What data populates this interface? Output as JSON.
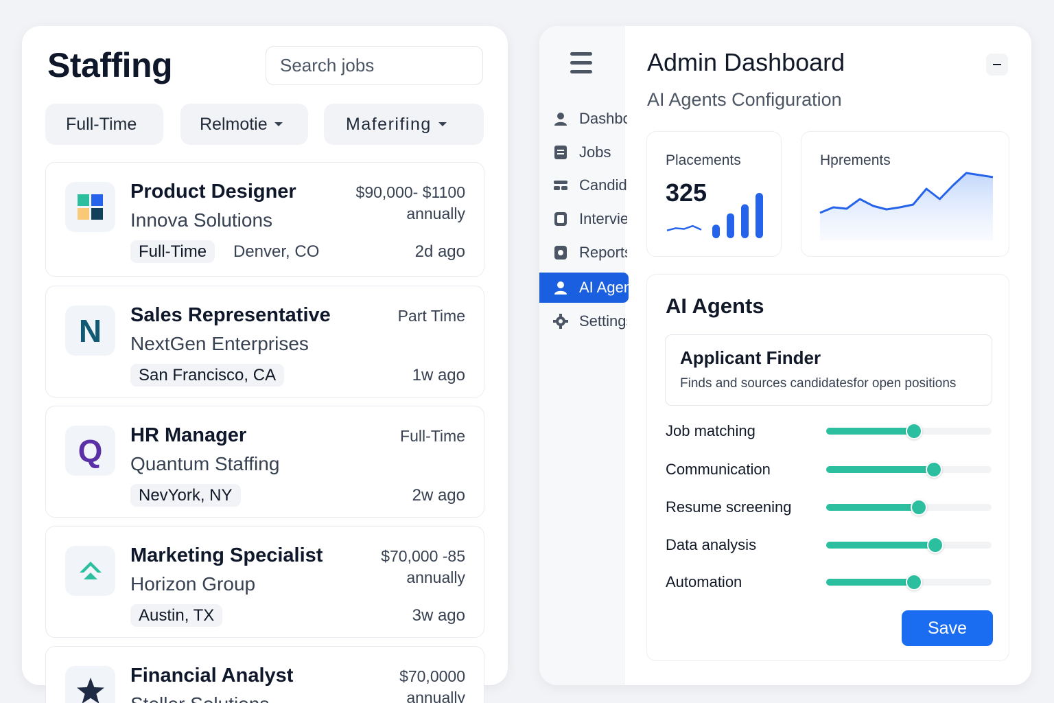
{
  "left": {
    "brand": "Staffing",
    "search_placeholder": "Search jobs",
    "filters": [
      "Full-Time",
      "Relmotie",
      "Maferifing"
    ],
    "jobs": [
      {
        "title": "Product Designer",
        "company": "Innova Solutions",
        "salary_line1": "$90,000- $1100",
        "salary_line2": "annually",
        "tag": "Full-Time",
        "location": "Denver, CO",
        "ago": "2d ago",
        "logo": "grid-logo-icon"
      },
      {
        "title": "Sales Representative",
        "company": "NextGen Enterprises",
        "salary_line1": "Part Time",
        "salary_line2": "",
        "tag": "",
        "location": "San Francisco, CA",
        "ago": "1w ago",
        "logo_letter": "N",
        "logo_color": "#125a73"
      },
      {
        "title": "HR Manager",
        "company": "Quantum Staffing",
        "salary_line1": "Full-Time",
        "salary_line2": "",
        "tag": "",
        "location": "NevYork, NY",
        "ago": "2w ago",
        "logo_letter": "Q",
        "logo_color": "#5b2fa6"
      },
      {
        "title": "Marketing Specialist",
        "company": "Horizon Group",
        "salary_line1": "$70,000 -85",
        "salary_line2": "annually",
        "tag": "",
        "location": "Austin, TX",
        "ago": "3w ago",
        "logo": "chevron-up-logo-icon",
        "logo_color": "#2bbfa0"
      },
      {
        "title": "Financial Analyst",
        "company": "Steller Solutions",
        "salary_line1": "$70,0000",
        "salary_line2": "annually",
        "tag": "",
        "location": "",
        "ago": "",
        "logo": "star-logo-icon",
        "logo_color": "#1f2a44"
      }
    ]
  },
  "right": {
    "title": "Admin Dashboard",
    "subtitle": "AI Agents Configuration",
    "sidebar": [
      {
        "label": "Dashboard",
        "icon": "user-icon"
      },
      {
        "label": "Jobs",
        "icon": "document-icon"
      },
      {
        "label": "Candidates",
        "icon": "people-icon"
      },
      {
        "label": "Interviews",
        "icon": "calendar-icon"
      },
      {
        "label": "Reports",
        "icon": "report-icon"
      },
      {
        "label": "AI Agents",
        "icon": "user-icon",
        "active": true
      },
      {
        "label": "Settings",
        "icon": "gear-icon"
      }
    ],
    "stats": [
      {
        "label": "Placements",
        "value": "325"
      },
      {
        "label": "Hprements",
        "value": ""
      }
    ],
    "placement_bars": [
      0.3,
      0.55,
      0.75,
      1.0
    ],
    "placement_trend": [
      0.15,
      0.3,
      0.25,
      0.45,
      0.2
    ],
    "trend_series": [
      0.4,
      0.48,
      0.46,
      0.6,
      0.5,
      0.45,
      0.48,
      0.52,
      0.75,
      0.6,
      0.8,
      0.98,
      0.95,
      0.92
    ],
    "agents_title": "AI Agents",
    "agent": {
      "name": "Applicant Finder",
      "description": "Finds and sources candidatesfor open positions"
    },
    "sliders": [
      {
        "label": "Job matching",
        "value": 0.53
      },
      {
        "label": "Communication",
        "value": 0.65
      },
      {
        "label": "Resume screening",
        "value": 0.56
      },
      {
        "label": "Data analysis",
        "value": 0.66
      },
      {
        "label": "Automation",
        "value": 0.53
      }
    ],
    "save_label": "Save",
    "colors": {
      "primary": "#1a6df0",
      "accent": "#2bbfa0",
      "chart": "#2563eb"
    }
  }
}
